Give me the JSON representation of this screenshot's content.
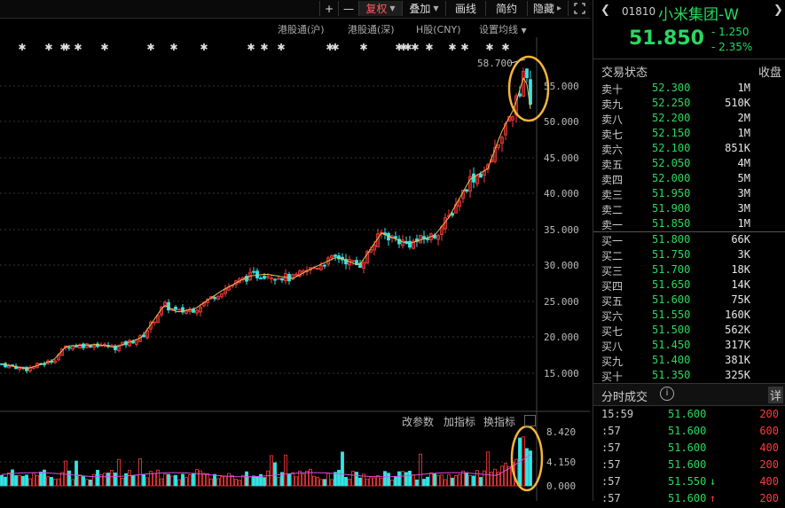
{
  "toolbar": {
    "plus": "+",
    "minus": "—",
    "adjust": "复权",
    "overlay": "叠加",
    "draw": "画线",
    "simple": "简约",
    "hide": "隐藏",
    "fullscreen_icon": "expand-icon"
  },
  "tabs": {
    "hk_sh": "港股通(沪)",
    "hk_sz": "港股通(深)",
    "h_share": "H股(CNY)",
    "ma_setting": "设置均线"
  },
  "chart": {
    "high_label": "58.700",
    "price_axis": [
      "55.000",
      "50.000",
      "45.000",
      "40.000",
      "35.000",
      "30.000",
      "25.000",
      "20.000",
      "15.000"
    ],
    "volume_axis": [
      "8.420",
      "4.150",
      "0.000"
    ],
    "colors": {
      "up": "#ff3b3b",
      "down": "#33e6e6",
      "ma": "#e8c25a",
      "circle": "#f4b53a"
    }
  },
  "volume_panel": {
    "change_params": "改参数",
    "add_indicator": "加指标",
    "switch_indicator": "换指标"
  },
  "quote": {
    "code": "01810",
    "name": "小米集团-W",
    "price": "51.850",
    "change": "- 1.250",
    "change_pct": "- 2.35%"
  },
  "orderbook": {
    "status_label": "交易状态",
    "status_value": "收盘",
    "asks": [
      {
        "label": "卖十",
        "price": "52.300",
        "vol": "1M"
      },
      {
        "label": "卖九",
        "price": "52.250",
        "vol": "510K"
      },
      {
        "label": "卖八",
        "price": "52.200",
        "vol": "2M"
      },
      {
        "label": "卖七",
        "price": "52.150",
        "vol": "1M"
      },
      {
        "label": "卖六",
        "price": "52.100",
        "vol": "851K"
      },
      {
        "label": "卖五",
        "price": "52.050",
        "vol": "4M"
      },
      {
        "label": "卖四",
        "price": "52.000",
        "vol": "5M"
      },
      {
        "label": "卖三",
        "price": "51.950",
        "vol": "3M"
      },
      {
        "label": "卖二",
        "price": "51.900",
        "vol": "3M"
      },
      {
        "label": "卖一",
        "price": "51.850",
        "vol": "1M"
      }
    ],
    "bids": [
      {
        "label": "买一",
        "price": "51.800",
        "vol": "66K"
      },
      {
        "label": "买二",
        "price": "51.750",
        "vol": "3K"
      },
      {
        "label": "买三",
        "price": "51.700",
        "vol": "18K"
      },
      {
        "label": "买四",
        "price": "51.650",
        "vol": "14K"
      },
      {
        "label": "买五",
        "price": "51.600",
        "vol": "75K"
      },
      {
        "label": "买六",
        "price": "51.550",
        "vol": "160K"
      },
      {
        "label": "买七",
        "price": "51.500",
        "vol": "562K"
      },
      {
        "label": "买八",
        "price": "51.450",
        "vol": "317K"
      },
      {
        "label": "买九",
        "price": "51.400",
        "vol": "381K"
      },
      {
        "label": "买十",
        "price": "51.350",
        "vol": "325K"
      }
    ]
  },
  "ticks": {
    "title": "分时成交",
    "detail": "详",
    "rows": [
      {
        "time": "15:59",
        "price": "51.600",
        "vol": "200",
        "arrow": ""
      },
      {
        "time": ":57",
        "price": "51.600",
        "vol": "600",
        "arrow": ""
      },
      {
        "time": ":57",
        "price": "51.600",
        "vol": "400",
        "arrow": ""
      },
      {
        "time": ":57",
        "price": "51.600",
        "vol": "200",
        "arrow": ""
      },
      {
        "time": ":57",
        "price": "51.550",
        "vol": "400",
        "arrow": "↓"
      },
      {
        "time": ":57",
        "price": "51.600",
        "vol": "200",
        "arrow": "↑"
      }
    ]
  }
}
